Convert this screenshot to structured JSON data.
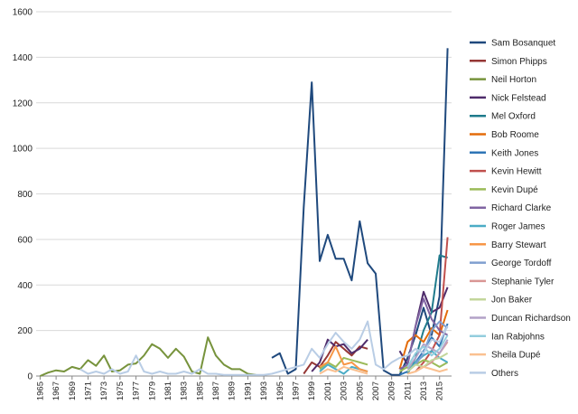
{
  "chart_data": {
    "type": "line",
    "title": "",
    "xlabel": "",
    "ylabel": "",
    "ylim": [
      0,
      1600
    ],
    "yticks": [
      0,
      200,
      400,
      600,
      800,
      1000,
      1200,
      1400,
      1600
    ],
    "xlim": [
      1965,
      2016
    ],
    "xticks": [
      1965,
      1967,
      1969,
      1971,
      1973,
      1975,
      1977,
      1979,
      1981,
      1983,
      1985,
      1987,
      1989,
      1991,
      1993,
      1995,
      1997,
      1999,
      2001,
      2003,
      2005,
      2007,
      2009,
      2011,
      2013,
      2015
    ],
    "grid": true,
    "legend": "right",
    "series": [
      {
        "name": "Sam Bosanquet",
        "color": "#1f497d",
        "x": [
          1994,
          1995,
          1996,
          1997,
          1998,
          1999,
          2000,
          2001,
          2002,
          2003,
          2004,
          2005,
          2006,
          2007,
          2008,
          2009,
          2010,
          2011,
          2012,
          2013,
          2014,
          2015,
          2016
        ],
        "y": [
          80,
          100,
          10,
          30,
          740,
          1290,
          505,
          620,
          515,
          515,
          420,
          680,
          495,
          450,
          25,
          5,
          5,
          80,
          180,
          300,
          180,
          350,
          1440
        ]
      },
      {
        "name": "Simon Phipps",
        "color": "#953735",
        "x": [
          1998,
          1999,
          2000,
          2001,
          2002,
          2003,
          2004,
          2005,
          2006
        ],
        "y": [
          10,
          60,
          40,
          90,
          150,
          120,
          90,
          130,
          120
        ]
      },
      {
        "name": "Neil Horton",
        "color": "#77933c",
        "x": [
          1965,
          1966,
          1967,
          1968,
          1969,
          1970,
          1971,
          1972,
          1973,
          1974,
          1975,
          1976,
          1977,
          1978,
          1979,
          1980,
          1981,
          1982,
          1983,
          1984,
          1985,
          1986,
          1987,
          1988,
          1989,
          1990,
          1991,
          1992
        ],
        "y": [
          0,
          15,
          25,
          20,
          40,
          30,
          70,
          45,
          90,
          20,
          25,
          50,
          55,
          90,
          140,
          120,
          80,
          120,
          85,
          20,
          10,
          170,
          90,
          50,
          30,
          30,
          10,
          5
        ]
      },
      {
        "name": "Nick Felstead",
        "color": "#4f2c6b",
        "x": [
          1999,
          2000,
          2001,
          2002,
          2003,
          2004,
          2005,
          2006,
          2010,
          2011,
          2012,
          2013,
          2014,
          2015,
          2016
        ],
        "y": [
          20,
          60,
          160,
          130,
          140,
          100,
          120,
          160,
          110,
          50,
          220,
          370,
          280,
          300,
          390
        ]
      },
      {
        "name": "Mel Oxford",
        "color": "#1f7b8c",
        "x": [
          2011,
          2012,
          2013,
          2014,
          2015,
          2016
        ],
        "y": [
          10,
          80,
          200,
          280,
          530,
          520
        ]
      },
      {
        "name": "Bob Roome",
        "color": "#e46c0a",
        "x": [
          2010,
          2011,
          2012,
          2013,
          2014,
          2015,
          2016
        ],
        "y": [
          30,
          150,
          180,
          150,
          210,
          180,
          290
        ]
      },
      {
        "name": "Keith Jones",
        "color": "#2e75b6",
        "x": [
          2010,
          2011,
          2012,
          2013,
          2014,
          2015,
          2016
        ],
        "y": [
          5,
          20,
          60,
          110,
          170,
          130,
          230
        ]
      },
      {
        "name": "Kevin Hewitt",
        "color": "#c0504d",
        "x": [
          2012,
          2013,
          2014,
          2015,
          2016
        ],
        "y": [
          20,
          60,
          110,
          180,
          610
        ]
      },
      {
        "name": "Kevin Dupé",
        "color": "#9bbb59",
        "x": [
          2000,
          2001,
          2002,
          2003,
          2004,
          2005,
          2006,
          2010,
          2011,
          2012,
          2013,
          2014,
          2015,
          2016
        ],
        "y": [
          30,
          60,
          40,
          80,
          70,
          60,
          50,
          20,
          40,
          50,
          70,
          60,
          40,
          60
        ]
      },
      {
        "name": "Richard Clarke",
        "color": "#8064a2",
        "x": [
          2010,
          2011,
          2012,
          2013,
          2014,
          2015,
          2016
        ],
        "y": [
          30,
          50,
          220,
          340,
          250,
          200,
          180
        ]
      },
      {
        "name": "Roger James",
        "color": "#4bacc6",
        "x": [
          2000,
          2001,
          2002,
          2003,
          2004,
          2005,
          2006,
          2011,
          2012,
          2013,
          2014,
          2015,
          2016
        ],
        "y": [
          20,
          50,
          30,
          10,
          40,
          30,
          20,
          20,
          60,
          90,
          110,
          80,
          60
        ]
      },
      {
        "name": "Barry Stewart",
        "color": "#f79646",
        "x": [
          2000,
          2001,
          2002,
          2003,
          2004,
          2005,
          2006
        ],
        "y": [
          40,
          60,
          130,
          50,
          60,
          30,
          20
        ]
      },
      {
        "name": "George Tordoff",
        "color": "#7f9fcf",
        "x": [
          2011,
          2012,
          2013,
          2014,
          2015,
          2016
        ],
        "y": [
          20,
          50,
          100,
          200,
          240,
          210
        ]
      },
      {
        "name": "Stephanie Tyler",
        "color": "#d99694",
        "x": [
          2012,
          2013,
          2014,
          2015,
          2016
        ],
        "y": [
          20,
          40,
          60,
          100,
          150
        ]
      },
      {
        "name": "Jon Baker",
        "color": "#c3d69b",
        "x": [
          2011,
          2012,
          2013,
          2014,
          2015,
          2016
        ],
        "y": [
          20,
          50,
          40,
          70,
          80,
          100
        ]
      },
      {
        "name": "Duncan Richardson",
        "color": "#b3a2c7",
        "x": [
          2011,
          2012,
          2013,
          2014,
          2015,
          2016
        ],
        "y": [
          30,
          80,
          140,
          120,
          100,
          160
        ]
      },
      {
        "name": "Ian Rabjohns",
        "color": "#93cddd",
        "x": [
          2011,
          2012,
          2013,
          2014,
          2015,
          2016
        ],
        "y": [
          40,
          100,
          130,
          90,
          120,
          180
        ]
      },
      {
        "name": "Sheila Dupé",
        "color": "#fac090",
        "x": [
          2000,
          2001,
          2002,
          2003,
          2004,
          2005,
          2006,
          2011,
          2012,
          2013,
          2014,
          2015,
          2016
        ],
        "y": [
          10,
          30,
          20,
          40,
          30,
          20,
          10,
          10,
          20,
          40,
          30,
          20,
          30
        ]
      },
      {
        "name": "Others",
        "color": "#b9cde5",
        "x": [
          1970,
          1971,
          1972,
          1973,
          1974,
          1975,
          1976,
          1977,
          1978,
          1979,
          1980,
          1981,
          1982,
          1983,
          1984,
          1985,
          1986,
          1987,
          1988,
          1989,
          1990,
          1991,
          1992,
          1993,
          1994,
          1995,
          1996,
          1997,
          1998,
          1999,
          2000,
          2001,
          2002,
          2003,
          2004,
          2005,
          2006,
          2007,
          2008,
          2009,
          2010,
          2011,
          2012,
          2013,
          2014,
          2015,
          2016
        ],
        "y": [
          30,
          10,
          20,
          10,
          30,
          10,
          20,
          90,
          20,
          10,
          20,
          10,
          10,
          20,
          10,
          30,
          10,
          10,
          5,
          5,
          5,
          5,
          5,
          5,
          10,
          20,
          30,
          40,
          50,
          120,
          80,
          140,
          190,
          150,
          120,
          160,
          240,
          50,
          30,
          60,
          80,
          90,
          120,
          100,
          160,
          150,
          220
        ]
      }
    ]
  }
}
